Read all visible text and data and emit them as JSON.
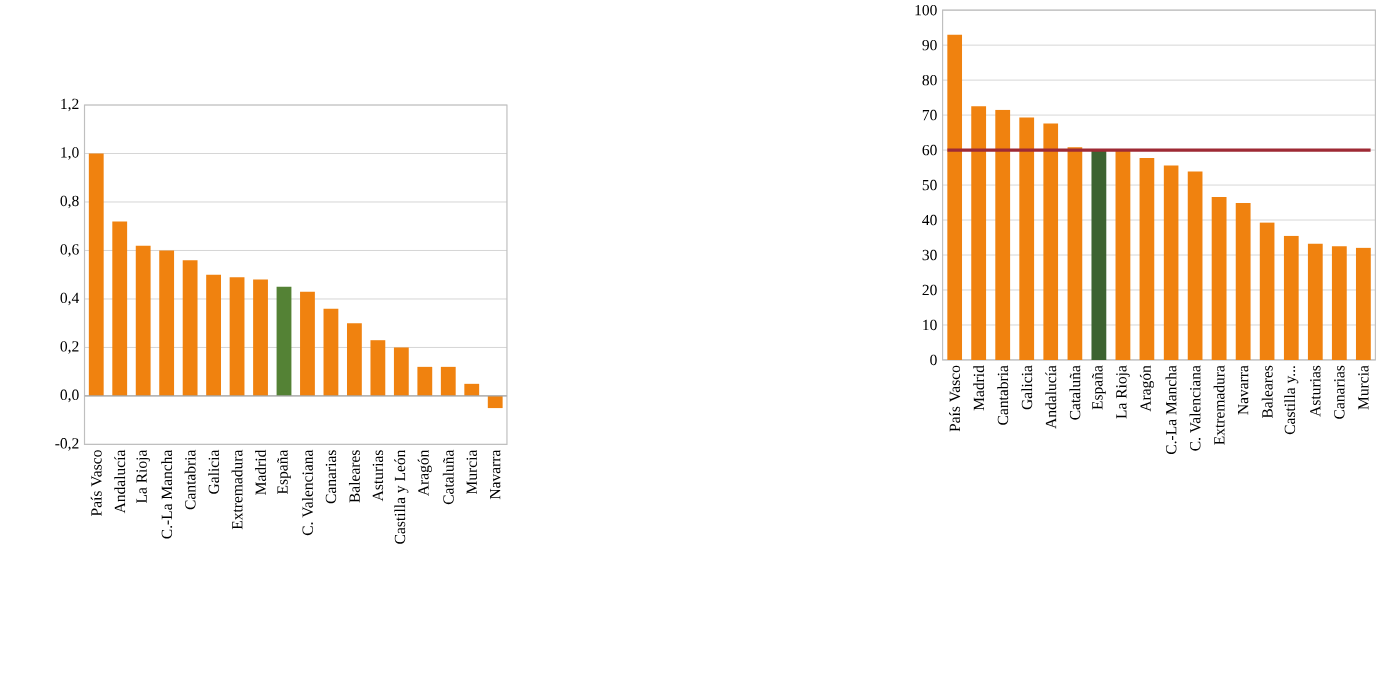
{
  "chart_data": [
    {
      "type": "bar",
      "categories": [
        "País Vasco",
        "Andalucía",
        "La Rioja",
        "C.-La Mancha",
        "Cantabria",
        "Galicia",
        "Extremadura",
        "Madrid",
        "España",
        "C. Valenciana",
        "Canarias",
        "Baleares",
        "Asturias",
        "Castilla y León",
        "Aragón",
        "Cataluña",
        "Murcia",
        "Navarra"
      ],
      "values": [
        1.0,
        0.72,
        0.62,
        0.6,
        0.56,
        0.5,
        0.49,
        0.48,
        0.45,
        0.43,
        0.36,
        0.3,
        0.23,
        0.2,
        0.12,
        0.12,
        0.05,
        -0.05
      ],
      "colors": [
        "#f0820f",
        "#f0820f",
        "#f0820f",
        "#f0820f",
        "#f0820f",
        "#f0820f",
        "#f0820f",
        "#f0820f",
        "#548235",
        "#f0820f",
        "#f0820f",
        "#f0820f",
        "#f0820f",
        "#f0820f",
        "#f0820f",
        "#f0820f",
        "#f0820f",
        "#f0820f"
      ],
      "ylim": [
        -0.2,
        1.2
      ],
      "yticks": [
        {
          "value": -0.2,
          "label": "-0,2"
        },
        {
          "value": 0,
          "label": "0,0"
        },
        {
          "value": 0.2,
          "label": "0,2"
        },
        {
          "value": 0.4,
          "label": "0,4"
        },
        {
          "value": 0.6,
          "label": "0,6"
        },
        {
          "value": 0.8,
          "label": "0,8"
        },
        {
          "value": 1.0,
          "label": "1,0"
        },
        {
          "value": 1.2,
          "label": "1,2"
        }
      ],
      "grid": "y"
    },
    {
      "type": "bar",
      "categories": [
        "País Vasco",
        "Madrid",
        "Cantabria",
        "Galicia",
        "Andalucía",
        "Cataluña",
        "España",
        "La Rioja",
        "Aragón",
        "C.-La Mancha",
        "C. Valenciana",
        "Extremadura",
        "Navarra",
        "Baleares",
        "Castilla y...",
        "Asturias",
        "Canarias",
        "Murcia"
      ],
      "values": [
        93,
        72.5,
        71.5,
        69.3,
        67.6,
        60.8,
        60,
        60,
        57.7,
        55.6,
        53.9,
        46.6,
        44.9,
        39.3,
        35.5,
        33.2,
        32.5,
        32.1
      ],
      "colors": [
        "#f0820f",
        "#f0820f",
        "#f0820f",
        "#f0820f",
        "#f0820f",
        "#f0820f",
        "#3c6331",
        "#f0820f",
        "#f0820f",
        "#f0820f",
        "#f0820f",
        "#f0820f",
        "#f0820f",
        "#f0820f",
        "#f0820f",
        "#f0820f",
        "#f0820f",
        "#f0820f"
      ],
      "ylim": [
        0,
        100
      ],
      "yticks": [
        0,
        10,
        20,
        30,
        40,
        50,
        60,
        70,
        80,
        90,
        100
      ],
      "ref_lines": [
        {
          "axis": "y",
          "value": 60,
          "color": "#9e2a35"
        }
      ],
      "grid": "y"
    }
  ]
}
